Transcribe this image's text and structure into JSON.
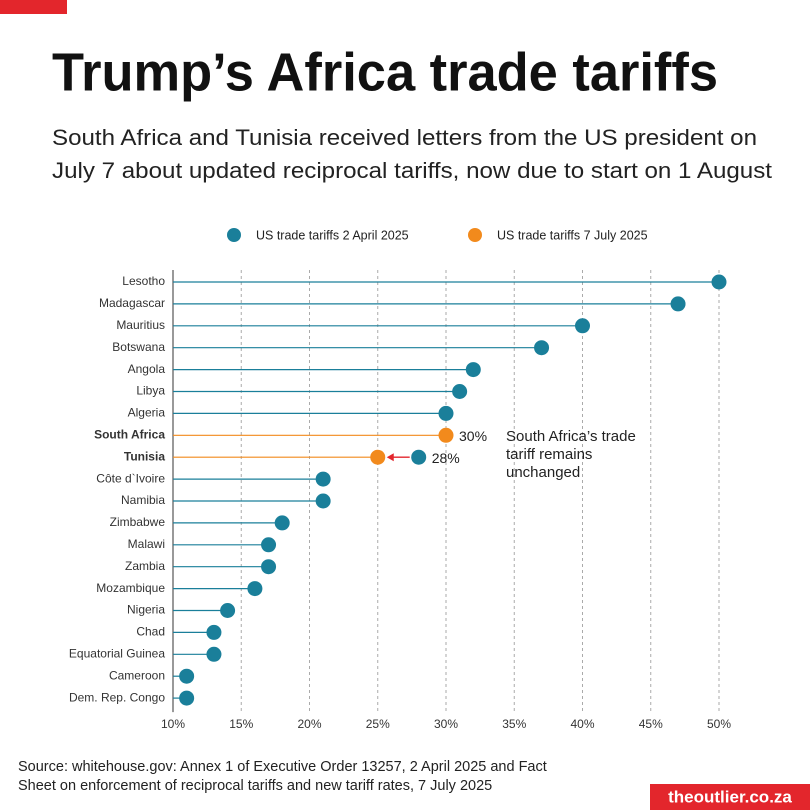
{
  "chart_data": {
    "type": "lollipop",
    "title": "Trump’s Africa trade tariffs",
    "subtitle": [
      "South Africa and Tunisia received letters from the US president on",
      "July 7 about updated reciprocal tariffs, now due to start on 1 August"
    ],
    "categories": [
      "Lesotho",
      "Madagascar",
      "Mauritius",
      "Botswana",
      "Angola",
      "Libya",
      "Algeria",
      "South Africa",
      "Tunisia",
      "Côte d`Ivoire",
      "Namibia",
      "Zimbabwe",
      "Malawi",
      "Zambia",
      "Mozambique",
      "Nigeria",
      "Chad",
      "Equatorial Guinea",
      "Cameroon",
      "Dem. Rep. Congo"
    ],
    "highlight_categories": [
      7,
      8
    ],
    "series": [
      {
        "name": "US trade tariffs 2 April 2025",
        "color": "#1a7f9a",
        "values": [
          50,
          47,
          40,
          37,
          32,
          31,
          30,
          30,
          28,
          21,
          21,
          18,
          17,
          17,
          16,
          14,
          13,
          13,
          11,
          11
        ],
        "value_labels": [
          null,
          null,
          null,
          null,
          null,
          null,
          null,
          null,
          "28%",
          null,
          null,
          null,
          null,
          null,
          null,
          null,
          null,
          null,
          null,
          null
        ]
      },
      {
        "name": "US trade tariffs 7 July 2025",
        "color": "#f28a1c",
        "values": [
          null,
          null,
          null,
          null,
          null,
          null,
          null,
          30,
          25,
          null,
          null,
          null,
          null,
          null,
          null,
          null,
          null,
          null,
          null,
          null
        ],
        "value_labels": [
          null,
          null,
          null,
          null,
          null,
          null,
          null,
          "30%",
          null,
          null,
          null,
          null,
          null,
          null,
          null,
          null,
          null,
          null,
          null,
          null
        ]
      }
    ],
    "annotation": [
      "South Africa’s trade",
      "tariff remains",
      "unchanged"
    ],
    "xlim": [
      10,
      50
    ],
    "xticks": [
      {
        "value": 10,
        "label": "10%"
      },
      {
        "value": 15,
        "label": "15%"
      },
      {
        "value": 20,
        "label": "20%"
      },
      {
        "value": 25,
        "label": "25%"
      },
      {
        "value": 30,
        "label": "30%"
      },
      {
        "value": 35,
        "label": "35%"
      },
      {
        "value": 40,
        "label": "40%"
      },
      {
        "value": 45,
        "label": "45%"
      },
      {
        "value": 50,
        "label": "50%"
      }
    ],
    "grid": true
  },
  "footer": {
    "source": [
      "Source: whitehouse.gov: Annex 1 of Executive Order 13257, 2 April 2025 and Fact",
      "Sheet on enforcement of reciprocal tariffs and new tariff rates, 7 July 2025"
    ],
    "brand": "theoutlier.co.za"
  }
}
